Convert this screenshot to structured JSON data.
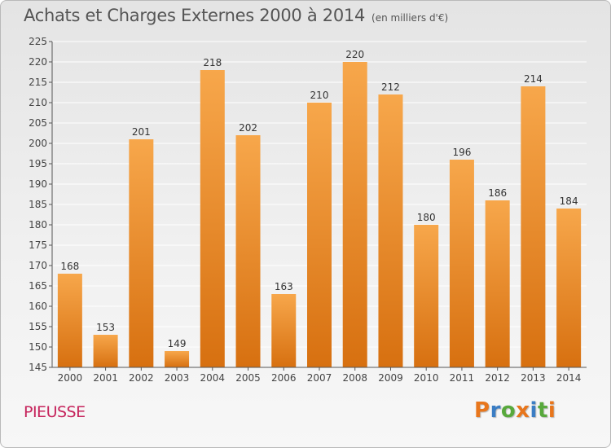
{
  "header": {
    "title": "Achats et Charges Externes 2000 à 2014",
    "subtitle": "(en milliers d'€)"
  },
  "footer": {
    "commune": "PIEUSSE",
    "logo": {
      "letters": [
        "P",
        "r",
        "o",
        "x",
        "i",
        "t",
        "i"
      ],
      "colors": [
        "#e8761c",
        "#3a7dc4",
        "#58a93c",
        "#e8761c",
        "#3a7dc4",
        "#58a93c",
        "#e8761c"
      ]
    }
  },
  "colors": {
    "bar_top": "#f7a74b",
    "bar_bottom": "#d77010",
    "axis": "#555555",
    "grid": "#ffffff"
  },
  "chart_data": {
    "type": "bar",
    "title": "Achats et Charges Externes 2000 à 2014",
    "subtitle": "(en milliers d'€)",
    "categories": [
      "2000",
      "2001",
      "2002",
      "2003",
      "2004",
      "2005",
      "2006",
      "2007",
      "2008",
      "2009",
      "2010",
      "2011",
      "2012",
      "2013",
      "2014"
    ],
    "values": [
      168,
      153,
      201,
      149,
      218,
      202,
      163,
      210,
      220,
      212,
      180,
      196,
      186,
      214,
      184
    ],
    "ylim": [
      145,
      225
    ],
    "yticks": [
      145,
      150,
      155,
      160,
      165,
      170,
      175,
      180,
      185,
      190,
      195,
      200,
      205,
      210,
      215,
      220,
      225
    ],
    "grid": true,
    "data_labels": true
  }
}
